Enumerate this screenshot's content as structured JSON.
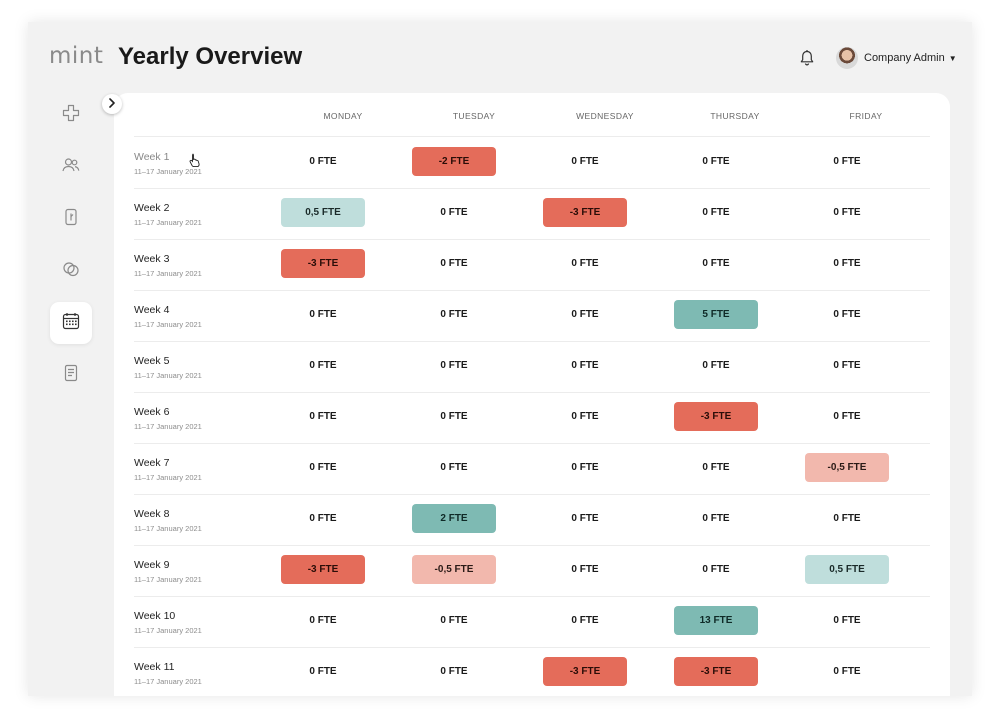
{
  "app": {
    "logo": "mint",
    "title": "Yearly Overview"
  },
  "user": {
    "name": "Company Admin"
  },
  "sidebar": {
    "items": [
      {
        "icon": "medical-cross-icon",
        "active": false
      },
      {
        "icon": "users-icon",
        "active": false
      },
      {
        "icon": "door-icon",
        "active": false
      },
      {
        "icon": "circles-icon",
        "active": false
      },
      {
        "icon": "calendar-icon",
        "active": true
      },
      {
        "icon": "document-icon",
        "active": false
      }
    ]
  },
  "colors": {
    "negative_strong": "#e46c5a",
    "negative_soft": "#f2b8ad",
    "positive_soft": "#bfdedc",
    "positive_strong": "#7ebab3"
  },
  "columns": [
    "MONDAY",
    "TUESDAY",
    "WEDNESDAY",
    "THURSDAY",
    "FRIDAY"
  ],
  "weeks": [
    {
      "label": "Week 1",
      "dates": "11–17 January 2021",
      "days": [
        "0 FTE",
        "-2 FTE",
        "0 FTE",
        "0 FTE",
        "0 FTE"
      ]
    },
    {
      "label": "Week 2",
      "dates": "11–17 January 2021",
      "days": [
        "0,5 FTE",
        "0 FTE",
        "-3 FTE",
        "0 FTE",
        "0 FTE"
      ]
    },
    {
      "label": "Week 3",
      "dates": "11–17 January 2021",
      "days": [
        "-3 FTE",
        "0 FTE",
        "0 FTE",
        "0 FTE",
        "0 FTE"
      ]
    },
    {
      "label": "Week 4",
      "dates": "11–17 January 2021",
      "days": [
        "0 FTE",
        "0 FTE",
        "0 FTE",
        "5 FTE",
        "0 FTE"
      ]
    },
    {
      "label": "Week 5",
      "dates": "11–17 January 2021",
      "days": [
        "0 FTE",
        "0 FTE",
        "0 FTE",
        "0 FTE",
        "0 FTE"
      ]
    },
    {
      "label": "Week 6",
      "dates": "11–17 January 2021",
      "days": [
        "0 FTE",
        "0 FTE",
        "0 FTE",
        "-3 FTE",
        "0 FTE"
      ]
    },
    {
      "label": "Week 7",
      "dates": "11–17 January 2021",
      "days": [
        "0 FTE",
        "0 FTE",
        "0 FTE",
        "0 FTE",
        "-0,5 FTE"
      ]
    },
    {
      "label": "Week 8",
      "dates": "11–17 January 2021",
      "days": [
        "0 FTE",
        "2 FTE",
        "0 FTE",
        "0 FTE",
        "0 FTE"
      ]
    },
    {
      "label": "Week 9",
      "dates": "11–17 January 2021",
      "days": [
        "-3 FTE",
        "-0,5 FTE",
        "0 FTE",
        "0 FTE",
        "0,5 FTE"
      ]
    },
    {
      "label": "Week 10",
      "dates": "11–17 January 2021",
      "days": [
        "0 FTE",
        "0 FTE",
        "0 FTE",
        "13 FTE",
        "0 FTE"
      ]
    },
    {
      "label": "Week 11",
      "dates": "11–17 January 2021",
      "days": [
        "0 FTE",
        "0 FTE",
        "-3 FTE",
        "-3 FTE",
        "0 FTE"
      ]
    }
  ]
}
